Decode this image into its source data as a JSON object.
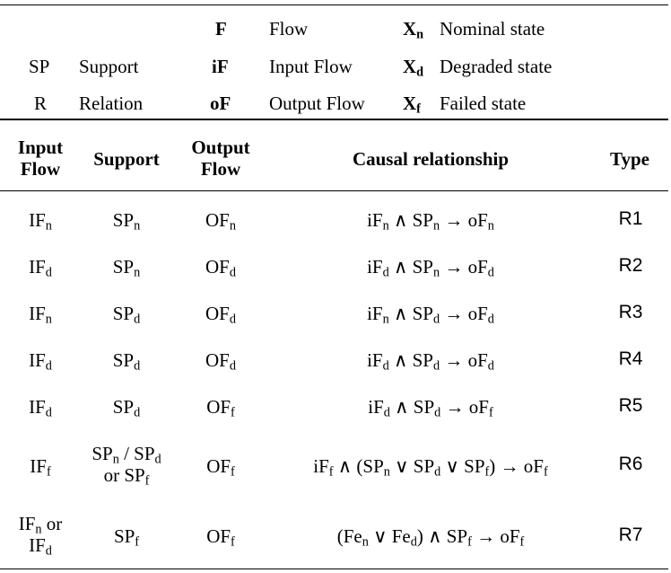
{
  "legend": {
    "col1": [
      {
        "abbr": "",
        "label": ""
      },
      {
        "abbr": "SP",
        "label": "Support"
      },
      {
        "abbr": "R",
        "label": "Relation"
      }
    ],
    "col2": [
      {
        "abbr": "F",
        "label": "Flow"
      },
      {
        "abbr": "iF",
        "label": "Input Flow"
      },
      {
        "abbr": "oF",
        "label": "Output Flow"
      }
    ],
    "col3": [
      {
        "abbr": "X",
        "sub": "n",
        "label": "Nominal state"
      },
      {
        "abbr": "X",
        "sub": "d",
        "label": "Degraded state"
      },
      {
        "abbr": "X",
        "sub": "f",
        "label": "Failed state"
      }
    ]
  },
  "headers": {
    "input_flow_1": "Input",
    "input_flow_2": "Flow",
    "support": "Support",
    "output_flow_1": "Output",
    "output_flow_2": "Flow",
    "causal": "Causal relationship",
    "type": "Type"
  },
  "rows": [
    {
      "type": "R1"
    },
    {
      "type": "R2"
    },
    {
      "type": "R3"
    },
    {
      "type": "R4"
    },
    {
      "type": "R5"
    },
    {
      "type": "R6"
    },
    {
      "type": "R7"
    }
  ],
  "symbols": {
    "IF": "IF",
    "SP": "SP",
    "OF": "OF",
    "iF": "iF",
    "oF": "oF",
    "Fe": "Fe",
    "n": "n",
    "d": "d",
    "f": "f",
    "and": "∧",
    "or": "∨",
    "arrow": "→",
    "or_word": "or",
    "slash": "/"
  }
}
